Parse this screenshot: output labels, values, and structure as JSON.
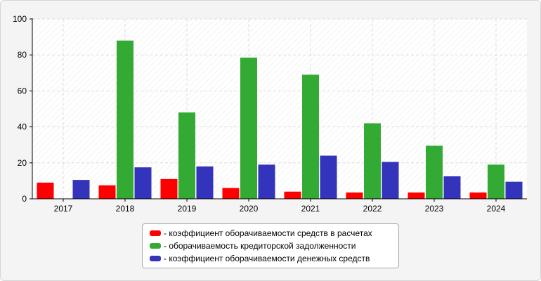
{
  "chart_data": {
    "type": "bar",
    "categories": [
      "2017",
      "2018",
      "2019",
      "2020",
      "2021",
      "2022",
      "2023",
      "2024"
    ],
    "series": [
      {
        "name": "- коэффициент оборачиваемости средств в расчетах",
        "color": "#ff0000",
        "values": [
          9,
          7.5,
          11,
          6,
          4,
          3.5,
          3.5,
          3.5
        ]
      },
      {
        "name": "- оборачиваемость кредиторской задолженности",
        "color": "#33aa33",
        "values": [
          0,
          88,
          48,
          78.5,
          69,
          42,
          29.5,
          19
        ]
      },
      {
        "name": "- коэффициент оборачиваемости денежных средств",
        "color": "#3333bb",
        "values": [
          10.5,
          17.5,
          18,
          19,
          24,
          20.5,
          12.5,
          9.5
        ]
      }
    ],
    "yticks": [
      "0",
      "20",
      "40",
      "60",
      "80",
      "100"
    ],
    "ylim": [
      0,
      100
    ],
    "grid": true,
    "legend_position": "bottom-center"
  }
}
